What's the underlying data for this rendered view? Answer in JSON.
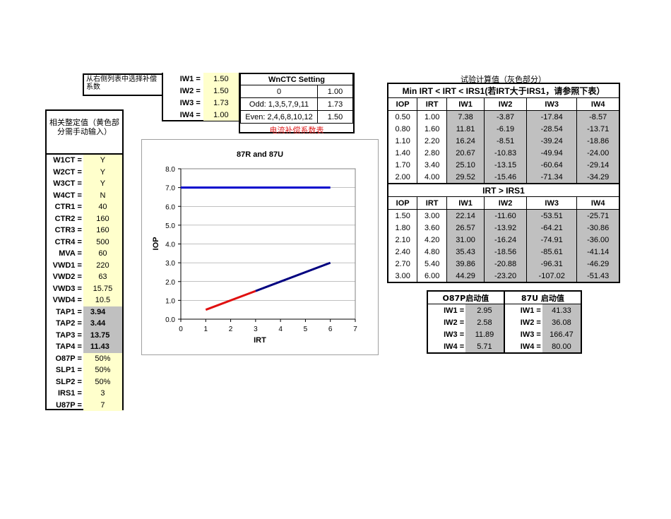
{
  "note_text": "从右侧列表中选择补偿系数",
  "iw": [
    {
      "label": "IW1 =",
      "value": "1.50"
    },
    {
      "label": "IW2 =",
      "value": "1.50"
    },
    {
      "label": "IW3 =",
      "value": "1.73"
    },
    {
      "label": "IW4 =",
      "value": "1.00"
    }
  ],
  "wnctc": {
    "title": "WnCTC Setting",
    "rows": [
      {
        "label": "0",
        "value": "1.00"
      },
      {
        "label": "Odd: 1,3,5,7,9,11",
        "value": "1.73"
      },
      {
        "label": "Even: 2,4,6,8,10,12",
        "value": "1.50"
      }
    ],
    "note": "电流补偿系数表"
  },
  "left_panel": {
    "title": "相关整定值（黄色部分需手动输入）",
    "rows": [
      {
        "label": "W1CT =",
        "value": "Y",
        "style": "yellow"
      },
      {
        "label": "W2CT =",
        "value": "Y",
        "style": "yellow"
      },
      {
        "label": "W3CT =",
        "value": "Y",
        "style": "yellow"
      },
      {
        "label": "W4CT =",
        "value": "N",
        "style": "yellow"
      },
      {
        "label": "CTR1 =",
        "value": "40",
        "style": "yellow"
      },
      {
        "label": "CTR2 =",
        "value": "160",
        "style": "yellow"
      },
      {
        "label": "CTR3 =",
        "value": "160",
        "style": "yellow"
      },
      {
        "label": "CTR4 =",
        "value": "500",
        "style": "yellow"
      },
      {
        "label": "MVA =",
        "value": "60",
        "style": "yellow"
      },
      {
        "label": "VWD1 =",
        "value": "220",
        "style": "yellow"
      },
      {
        "label": "VWD2 =",
        "value": "63",
        "style": "yellow"
      },
      {
        "label": "VWD3 =",
        "value": "15.75",
        "style": "yellow"
      },
      {
        "label": "VWD4 =",
        "value": "10.5",
        "style": "yellow"
      },
      {
        "label": "TAP1 =",
        "value": "3.94",
        "style": "grey"
      },
      {
        "label": "TAP2 =",
        "value": "3.44",
        "style": "grey"
      },
      {
        "label": "TAP3 =",
        "value": "13.75",
        "style": "grey"
      },
      {
        "label": "TAP4 =",
        "value": "11.43",
        "style": "grey"
      },
      {
        "label": "O87P =",
        "value": "50%",
        "style": "yellow"
      },
      {
        "label": "SLP1 =",
        "value": "50%",
        "style": "yellow"
      },
      {
        "label": "SLP2 =",
        "value": "50%",
        "style": "yellow"
      },
      {
        "label": "IRS1 =",
        "value": "3",
        "style": "yellow"
      },
      {
        "label": "U87P =",
        "value": "7",
        "style": "yellow"
      }
    ]
  },
  "chart_data": {
    "type": "line",
    "title": "87R and 87U",
    "xlabel": "IRT",
    "ylabel": "IOP",
    "xlim": [
      0,
      7
    ],
    "ylim": [
      0,
      8
    ],
    "x_ticks": [
      "0",
      "1",
      "2",
      "3",
      "4",
      "5",
      "6",
      "7"
    ],
    "y_ticks": [
      "0.0",
      "1.0",
      "2.0",
      "3.0",
      "4.0",
      "5.0",
      "6.0",
      "7.0",
      "8.0"
    ],
    "grid": true,
    "series": [
      {
        "color": "#0000cc",
        "points": [
          [
            0,
            7
          ],
          [
            6,
            7
          ]
        ]
      },
      {
        "color": "#e01010",
        "points": [
          [
            1,
            0.5
          ],
          [
            3,
            1.5
          ]
        ]
      },
      {
        "color": "#000080",
        "points": [
          [
            3,
            1.5
          ],
          [
            6,
            3.0
          ]
        ]
      }
    ]
  },
  "calc": {
    "title": "试验计算值（灰色部分）",
    "section1": "Min IRT < IRT < IRS1(若IRT大于IRS1，请参照下表）",
    "section2": "IRT > IRS1",
    "headers": [
      "IOP",
      "IRT",
      "IW1",
      "IW2",
      "IW3",
      "IW4"
    ],
    "rows1": [
      [
        "0.50",
        "1.00",
        "7.38",
        "-3.87",
        "-17.84",
        "-8.57"
      ],
      [
        "0.80",
        "1.60",
        "11.81",
        "-6.19",
        "-28.54",
        "-13.71"
      ],
      [
        "1.10",
        "2.20",
        "16.24",
        "-8.51",
        "-39.24",
        "-18.86"
      ],
      [
        "1.40",
        "2.80",
        "20.67",
        "-10.83",
        "-49.94",
        "-24.00"
      ],
      [
        "1.70",
        "3.40",
        "25.10",
        "-13.15",
        "-60.64",
        "-29.14"
      ],
      [
        "2.00",
        "4.00",
        "29.52",
        "-15.46",
        "-71.34",
        "-34.29"
      ]
    ],
    "rows2": [
      [
        "1.50",
        "3.00",
        "22.14",
        "-11.60",
        "-53.51",
        "-25.71"
      ],
      [
        "1.80",
        "3.60",
        "26.57",
        "-13.92",
        "-64.21",
        "-30.86"
      ],
      [
        "2.10",
        "4.20",
        "31.00",
        "-16.24",
        "-74.91",
        "-36.00"
      ],
      [
        "2.40",
        "4.80",
        "35.43",
        "-18.56",
        "-85.61",
        "-41.14"
      ],
      [
        "2.70",
        "5.40",
        "39.86",
        "-20.88",
        "-96.31",
        "-46.29"
      ],
      [
        "3.00",
        "6.00",
        "44.29",
        "-23.20",
        "-107.02",
        "-51.43"
      ]
    ]
  },
  "pickup": {
    "h1": "O87P启动值",
    "h2": "87U 启动值",
    "rows": [
      {
        "l1": "IW1 =",
        "v1": "2.95",
        "l2": "IW1 =",
        "v2": "41.33"
      },
      {
        "l1": "IW2 =",
        "v1": "2.58",
        "l2": "IW2 =",
        "v2": "36.08"
      },
      {
        "l1": "IW3 =",
        "v1": "11.89",
        "l2": "IW3 =",
        "v2": "166.47"
      },
      {
        "l1": "IW4 =",
        "v1": "5.71",
        "l2": "IW4 =",
        "v2": "80.00"
      }
    ]
  }
}
